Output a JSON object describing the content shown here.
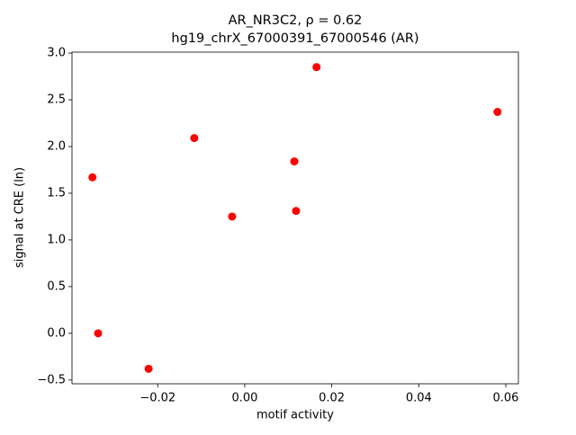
{
  "chart_data": {
    "type": "scatter",
    "title": "AR_NR3C2, ρ = 0.62",
    "subtitle": "hg19_chrX_67000391_67000546 (AR)",
    "x_label": "motif activity",
    "y_label": "signal at CRE (ln)",
    "color": "#ff0000",
    "x": [
      -0.035,
      -0.0337,
      -0.0221,
      -0.0116,
      -0.0029,
      0.0114,
      0.0118,
      0.0165,
      0.0581
    ],
    "values": [
      1.67,
      0.0,
      -0.38,
      2.09,
      1.25,
      1.84,
      1.31,
      2.85,
      2.37
    ],
    "xlim": [
      -0.0397,
      0.0629
    ],
    "ylim": [
      -0.54,
      3.01
    ],
    "xticks": [
      {
        "value": -0.02,
        "label": "−0.02"
      },
      {
        "value": 0,
        "label": "0.00"
      },
      0.02,
      0.04,
      0.06
    ],
    "yticks": [
      {
        "value": -0.5,
        "label": "−0.5"
      },
      {
        "value": 0,
        "label": "0.0"
      },
      0.5,
      {
        "value": 1,
        "label": "1.0"
      },
      1.5,
      {
        "value": 2,
        "label": "2.0"
      },
      2.5,
      {
        "value": 3,
        "label": "3.0"
      }
    ]
  }
}
